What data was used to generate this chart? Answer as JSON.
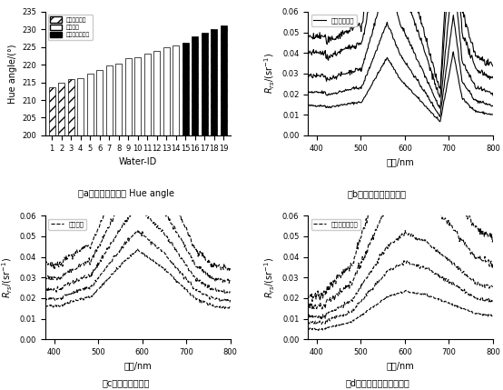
{
  "bar_water_ids": [
    1,
    2,
    3,
    4,
    5,
    6,
    7,
    8,
    9,
    10,
    11,
    12,
    13,
    14,
    15,
    16,
    17,
    18,
    19
  ],
  "bar_hue_values": [
    213.5,
    215.0,
    215.8,
    216.3,
    217.5,
    218.5,
    219.7,
    220.2,
    221.8,
    222.0,
    223.0,
    223.8,
    225.0,
    225.5,
    226.3,
    228.0,
    229.0,
    230.2,
    231.2
  ],
  "bar_types": [
    "green",
    "green",
    "green",
    "normal",
    "normal",
    "normal",
    "normal",
    "normal",
    "normal",
    "normal",
    "normal",
    "normal",
    "normal",
    "normal",
    "brown",
    "brown",
    "brown",
    "brown",
    "brown"
  ],
  "ylim_bar": [
    200,
    235
  ],
  "yticks_bar": [
    200,
    205,
    210,
    215,
    220,
    225,
    230,
    235
  ],
  "legend_labels_bar": [
    "绿色异常水体",
    "一般水体",
    "黄棕色异常水体"
  ],
  "xlabel_bar": "Water-ID",
  "ylabel_bar": "Hue angle/(°)",
  "caption_a": "（a）不同颜色水体 Hue angle",
  "caption_b": "（b）绿色异常水体光谱",
  "caption_c": "（c）一般水体光谱",
  "caption_d": "（d）黄棕色异常水体光谱",
  "xlabel_spec": "波长/nm",
  "ylabel_spec": "$R_{rs}$/(sr$^{-1}$)",
  "xlim_spec": [
    380,
    800
  ],
  "ylim_spec": [
    0.0,
    0.06
  ],
  "yticks_spec": [
    0.0,
    0.01,
    0.02,
    0.03,
    0.04,
    0.05,
    0.06
  ],
  "legend_b": "绿色异常水体",
  "legend_c": "一般水体",
  "legend_d": "黄棕色异常水体"
}
